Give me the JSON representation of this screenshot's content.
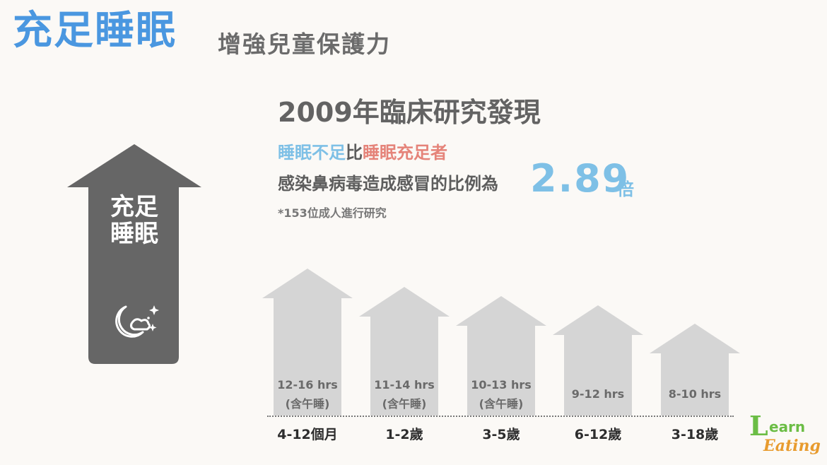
{
  "header": {
    "title_main": "充足睡眠",
    "title_sub": "增強兒童保護力"
  },
  "study": {
    "title": "2009年臨床研究發現",
    "insufficient": "睡眠不足",
    "compare_word": "比",
    "sufficient": "睡眠充足者",
    "line2": "感染鼻病毒造成感冒的比例為",
    "ratio": "2.89",
    "ratio_unit": "倍",
    "note": "*153位成人進行研究"
  },
  "big_arrow": {
    "line1": "充足",
    "line2": "睡眠",
    "icon": "moon-stars-icon"
  },
  "chart_data": {
    "type": "bar",
    "categories": [
      "4-12個月",
      "1-2歲",
      "3-5歲",
      "6-12歲",
      "3-18歲"
    ],
    "labels": [
      "12-16 hrs",
      "11-14 hrs",
      "10-13 hrs",
      "9-12 hrs",
      "8-10 hrs"
    ],
    "notes": [
      "(含午睡)",
      "(含午睡)",
      "(含午睡)",
      "",
      ""
    ],
    "ranges": [
      [
        12,
        16
      ],
      [
        11,
        14
      ],
      [
        10,
        13
      ],
      [
        9,
        12
      ],
      [
        8,
        10
      ]
    ]
  },
  "logo": {
    "l": "L",
    "earn": "earn",
    "eating": "Eating"
  }
}
